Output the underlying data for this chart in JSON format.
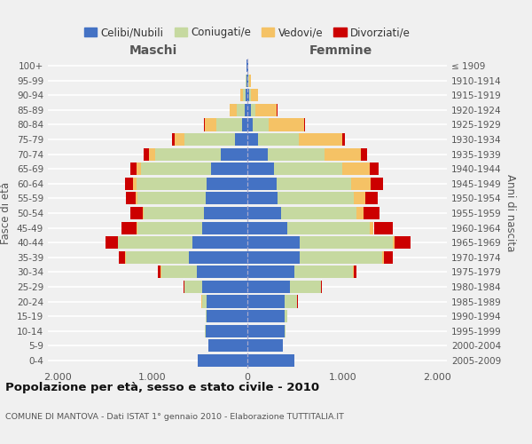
{
  "age_groups": [
    "0-4",
    "5-9",
    "10-14",
    "15-19",
    "20-24",
    "25-29",
    "30-34",
    "35-39",
    "40-44",
    "45-49",
    "50-54",
    "55-59",
    "60-64",
    "65-69",
    "70-74",
    "75-79",
    "80-84",
    "85-89",
    "90-94",
    "95-99",
    "100+"
  ],
  "birth_years": [
    "2005-2009",
    "2000-2004",
    "1995-1999",
    "1990-1994",
    "1985-1989",
    "1980-1984",
    "1975-1979",
    "1970-1974",
    "1965-1969",
    "1960-1964",
    "1955-1959",
    "1950-1954",
    "1945-1949",
    "1940-1944",
    "1935-1939",
    "1930-1934",
    "1925-1929",
    "1920-1924",
    "1915-1919",
    "1910-1914",
    "≤ 1909"
  ],
  "colors": {
    "celibe": "#4472C4",
    "coniugato": "#C6D9A0",
    "vedovo": "#F5C265",
    "divorziato": "#CC0000"
  },
  "males": {
    "celibe": [
      520,
      410,
      440,
      430,
      430,
      480,
      530,
      620,
      580,
      480,
      460,
      440,
      430,
      380,
      280,
      130,
      60,
      30,
      20,
      10,
      5
    ],
    "coniugato": [
      0,
      0,
      5,
      10,
      50,
      180,
      380,
      660,
      780,
      680,
      630,
      720,
      740,
      740,
      690,
      530,
      270,
      80,
      25,
      5,
      0
    ],
    "vedovo": [
      0,
      0,
      0,
      0,
      5,
      5,
      5,
      5,
      5,
      10,
      10,
      15,
      30,
      50,
      70,
      110,
      120,
      80,
      30,
      5,
      0
    ],
    "divorziato": [
      0,
      0,
      0,
      0,
      5,
      10,
      30,
      70,
      130,
      160,
      130,
      100,
      90,
      60,
      50,
      20,
      5,
      0,
      0,
      0,
      0
    ]
  },
  "females": {
    "celibe": [
      490,
      370,
      390,
      390,
      390,
      450,
      490,
      550,
      550,
      420,
      350,
      320,
      310,
      280,
      210,
      110,
      60,
      40,
      20,
      10,
      5
    ],
    "coniugato": [
      0,
      0,
      10,
      30,
      130,
      320,
      620,
      870,
      980,
      870,
      800,
      800,
      780,
      720,
      600,
      430,
      160,
      40,
      15,
      5,
      0
    ],
    "vedovo": [
      0,
      0,
      0,
      0,
      5,
      5,
      10,
      15,
      20,
      40,
      70,
      120,
      210,
      290,
      380,
      460,
      380,
      230,
      80,
      20,
      5
    ],
    "divorziato": [
      0,
      0,
      0,
      0,
      5,
      10,
      30,
      100,
      170,
      200,
      170,
      130,
      130,
      90,
      70,
      30,
      10,
      5,
      0,
      0,
      0
    ]
  },
  "title": "Popolazione per età, sesso e stato civile - 2010",
  "subtitle": "COMUNE DI MANTOVA - Dati ISTAT 1° gennaio 2010 - Elaborazione TUTTITALIA.IT",
  "ylabel_left": "Fasce di età",
  "ylabel_right": "Anni di nascita",
  "xlabel_left": "Maschi",
  "xlabel_right": "Femmine",
  "xlim": 2100,
  "xticks": [
    -2000,
    -1000,
    0,
    1000,
    2000
  ],
  "xtick_labels": [
    "2.000",
    "1.000",
    "0",
    "1.000",
    "2.000"
  ],
  "legend_labels": [
    "Celibi/Nubili",
    "Coniugati/e",
    "Vedovi/e",
    "Divorziati/e"
  ],
  "bg_color": "#f0f0f0",
  "grid_color": "#ffffff"
}
